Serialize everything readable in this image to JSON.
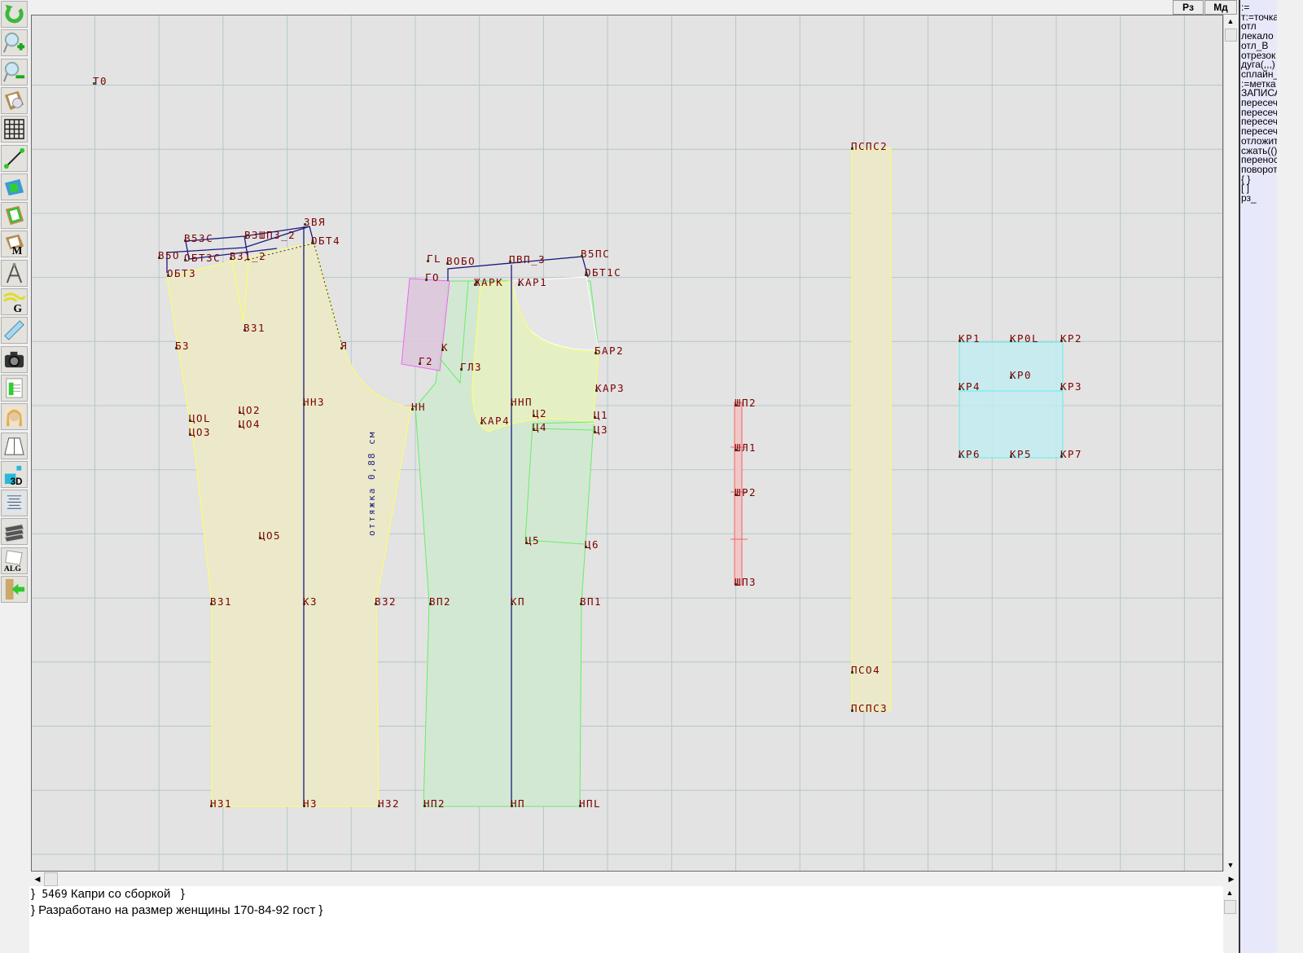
{
  "toolbar": {
    "icons": [
      "refresh-icon",
      "zoom-in-icon",
      "zoom-out-icon",
      "pattern-magnify-icon",
      "grid-icon",
      "line-segment-icon",
      "map-icon",
      "pattern-green-icon",
      "pattern-m-icon",
      "compass-icon",
      "pattern-g-icon",
      "ruler-icon",
      "camera-icon",
      "spreadsheet-icon",
      "avatar-photo-icon",
      "jacket-icon",
      "3d-icon",
      "text-list-icon",
      "books-icon",
      "alg-document-icon",
      "exit-icon"
    ],
    "icon_3d_text": "3D",
    "icon_alg_text": "ALG",
    "icon_m_text": "M",
    "icon_g_text": "G"
  },
  "top_buttons": {
    "rz": "Рз",
    "md": "Мд"
  },
  "right_panel": {
    "lines": [
      ":=",
      "т:=точка",
      "отл",
      "лекало",
      "отл_В",
      "отрезок",
      "дуга(,,,)",
      "сплайн_",
      ":=метка",
      "ЗАПИСА",
      "пересеч",
      "пересеч",
      "пересеч",
      "пересеч",
      "отложит",
      "сжать(()",
      "перенос",
      "поворот",
      "{  }",
      "[  ]",
      "рз_"
    ]
  },
  "canvas": {
    "annotation": "оттяжка 0,88 см",
    "labels": [
      "Т0",
      "В5ЗС",
      "ВЗШП3_2",
      "ЗВЯ",
      "ОБТ4",
      "В5О",
      "ОБТ3С",
      "ВЗ1_2",
      "ОБТ3",
      "В31",
      "Б3",
      "Я",
      "НН3",
      "ЦО2",
      "ЦО4",
      "ЦОL",
      "ЦО3",
      "ЦО5",
      "ВЗ1",
      "КЗ",
      "ВЗ2",
      "НЗ1",
      "НЗ",
      "НЗ2",
      "ГL",
      "ВОБО",
      "ПВП_3",
      "В5ПС",
      "ОБТ1С",
      "ГО",
      "КАР1",
      "ЖАРК",
      "Г2",
      "К",
      "ГЛ3",
      "БАР2",
      "КАР3",
      "НН",
      "ННП",
      "КАР4",
      "Ц2",
      "Ц4",
      "Ц1",
      "Ц3",
      "Ц5",
      "Ц6",
      "ВП2",
      "КП",
      "ВП1",
      "НП2",
      "НП",
      "НПL",
      "ШП2",
      "ШЛ1",
      "ШР2",
      "ШП3",
      "ПСПС2",
      "ПСО4",
      "ПСПС3",
      "КР1",
      "КР0L",
      "КР2",
      "КР0",
      "КР4",
      "КР3",
      "КР6",
      "КР5",
      "КР7"
    ],
    "colors": {
      "background": "#e3e3e3",
      "grid": "#b4c8c8",
      "back_piece": "#ebe9c9",
      "front_piece": "#d3e8d3",
      "pocket": "#e4f0c4",
      "facing": "#e0c8e0",
      "strip_red": "#f0c8c8",
      "band": "#ebe9c9",
      "cuff": "#c2ecf0",
      "label": "#7a0000",
      "construction": "#1a1a80"
    }
  },
  "bottom": {
    "line1_num": "5469",
    "line1_text": "Капри со сборкой   }",
    "line1_prefix": "}",
    "line2": "} Разработано на размер женщины 170-84-92 гост }"
  }
}
